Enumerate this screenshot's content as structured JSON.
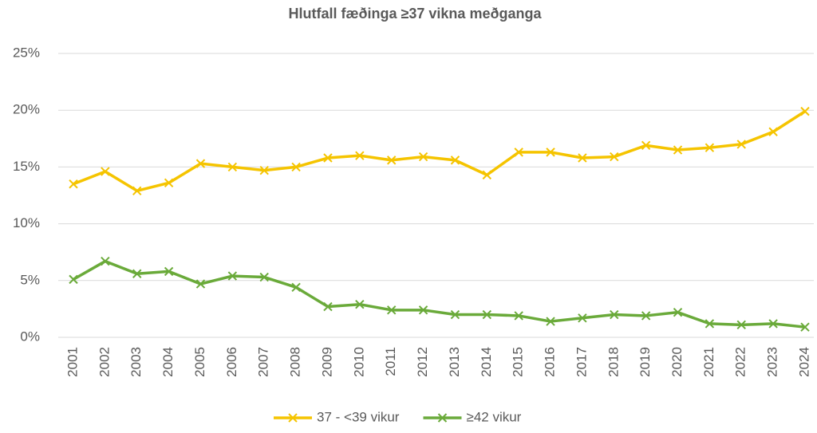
{
  "chart_data": {
    "type": "line",
    "title": "Hlutfall fæðinga ≥37 vikna meðganga",
    "categories": [
      "2001",
      "2002",
      "2003",
      "2004",
      "2005",
      "2006",
      "2007",
      "2008",
      "2009",
      "2010",
      "2011",
      "2012",
      "2013",
      "2014",
      "2015",
      "2016",
      "2017",
      "2018",
      "2019",
      "2020",
      "2021",
      "2022",
      "2023",
      "2024"
    ],
    "series": [
      {
        "name": "37 - <39 vikur",
        "color": "#f5c400",
        "values": [
          13.5,
          14.6,
          12.9,
          13.6,
          15.3,
          15.0,
          14.7,
          15.0,
          15.8,
          16.0,
          15.6,
          15.9,
          15.6,
          14.3,
          16.3,
          16.3,
          15.8,
          15.9,
          16.9,
          16.5,
          16.7,
          17.0,
          18.1,
          19.9
        ]
      },
      {
        "name": "≥42 vikur",
        "color": "#6aaa3a",
        "values": [
          5.1,
          6.7,
          5.6,
          5.8,
          4.7,
          5.4,
          5.3,
          4.4,
          2.7,
          2.9,
          2.4,
          2.4,
          2.0,
          2.0,
          1.9,
          1.4,
          1.7,
          2.0,
          1.9,
          2.2,
          1.2,
          1.1,
          1.2,
          0.9
        ]
      }
    ],
    "ylim": [
      0,
      25
    ],
    "yticks": [
      {
        "value": 0,
        "label": "0%"
      },
      {
        "value": 5,
        "label": "5%"
      },
      {
        "value": 10,
        "label": "10%"
      },
      {
        "value": 15,
        "label": "15%"
      },
      {
        "value": 20,
        "label": "20%"
      },
      {
        "value": 25,
        "label": "25%"
      }
    ],
    "grid": true,
    "legend": "bottom"
  }
}
